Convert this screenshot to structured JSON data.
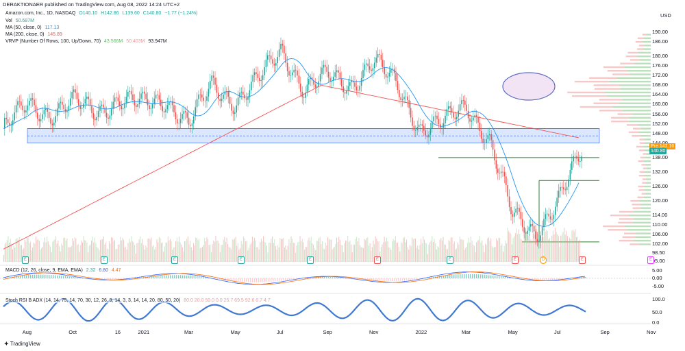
{
  "header": {
    "publisher": "DERAKTIONAER published on TradingView.com, Aug 08, 2022 14:24 UTC+2",
    "symbol": "Amazon.com, Inc., 1D, NASDAQ",
    "ohlc_o": "O140.10",
    "ohlc_h": "H142.86",
    "ohlc_l": "L139.60",
    "ohlc_c": "C140.80",
    "change": "−1.77 (−1.24%)"
  },
  "legend": {
    "vol_label": "Vol",
    "vol_value": "50.687M",
    "ma50_label": "MA (50, close, 0)",
    "ma50_value": "117.13",
    "ma200_label": "MA (200, close, 0)",
    "ma200_value": "145.89",
    "vrvp_label": "VRVP (Number Of Rows, 100, Up/Down, 70)",
    "vrvp_v1": "43.566M",
    "vrvp_v2": "50.403M",
    "vrvp_v3": "93.947M",
    "macd_label": "MACD (12, 26, close, 9, EMA, EMA)",
    "macd_v1": "2.32",
    "macd_v2": "6.80",
    "macd_v3": "4.47",
    "stoch_label": "Stoch RSI B ADX (14, 14, 75, 14, 70, 30, 12, 26, 9, 14, 3, 3, 14, 14, 20, 80, 50, 20)",
    "stoch_vals": "80.0  20.0  50.0  0.0  25.7  69.5  92.6  0.7  4.7"
  },
  "price_axis": {
    "currency": "USD",
    "ticks": [
      "190.00",
      "186.00",
      "180.00",
      "176.00",
      "172.00",
      "168.00",
      "164.00",
      "160.00",
      "156.00",
      "152.00",
      "148.00",
      "144.00",
      "138.00",
      "132.00",
      "126.00",
      "120.00",
      "114.00",
      "110.00",
      "106.00",
      "102.00",
      "98.50",
      "95.00"
    ],
    "pre_label": "Pre",
    "pre_value": "142.16",
    "last_value": "140.80"
  },
  "macd_axis": [
    "5.00",
    "0.00",
    "-5.00"
  ],
  "stoch_axis": [
    "100.0",
    "50.0",
    "0.0"
  ],
  "time_axis": [
    "Aug",
    "Oct",
    "16",
    "2021",
    "Mar",
    "May",
    "Jul",
    "Sep",
    "Nov",
    "2022",
    "Mar",
    "May",
    "Jul",
    "Sep",
    "Nov"
  ],
  "events": [
    "E",
    "E",
    "E",
    "E",
    "E",
    "E",
    "E",
    "E",
    "E",
    "E",
    "D",
    "E",
    "E"
  ],
  "footer": "TradingView",
  "colors": {
    "up": "#26a69a",
    "down": "#ef5350",
    "ma50": "#2196f3",
    "ma200": "#ef5350",
    "zone": "#2962ff",
    "support": "#2e7d32"
  },
  "chart_data": {
    "type": "candlestick",
    "title": "Amazon.com, Inc., 1D, NASDAQ",
    "ylim": [
      95,
      192
    ],
    "x_range": [
      "2020-07",
      "2022-11"
    ],
    "close_path_approx": [
      {
        "x": "2020-07",
        "y": 150
      },
      {
        "x": "2020-08",
        "y": 160
      },
      {
        "x": "2020-09",
        "y": 156
      },
      {
        "x": "2020-10",
        "y": 161
      },
      {
        "x": "2020-11",
        "y": 157
      },
      {
        "x": "2020-12",
        "y": 162
      },
      {
        "x": "2021-01",
        "y": 160
      },
      {
        "x": "2021-02",
        "y": 162
      },
      {
        "x": "2021-03",
        "y": 152
      },
      {
        "x": "2021-04",
        "y": 168
      },
      {
        "x": "2021-05",
        "y": 161
      },
      {
        "x": "2021-06",
        "y": 170
      },
      {
        "x": "2021-07",
        "y": 183
      },
      {
        "x": "2021-08",
        "y": 166
      },
      {
        "x": "2021-09",
        "y": 172
      },
      {
        "x": "2021-10",
        "y": 168
      },
      {
        "x": "2021-11",
        "y": 178
      },
      {
        "x": "2021-12",
        "y": 168
      },
      {
        "x": "2022-01",
        "y": 150
      },
      {
        "x": "2022-02",
        "y": 152
      },
      {
        "x": "2022-03",
        "y": 160
      },
      {
        "x": "2022-04",
        "y": 145
      },
      {
        "x": "2022-05",
        "y": 114
      },
      {
        "x": "2022-06",
        "y": 107
      },
      {
        "x": "2022-07",
        "y": 120
      },
      {
        "x": "2022-08",
        "y": 140.8
      }
    ],
    "ma50_last": 117.13,
    "ma200_last": 145.89,
    "resistance_zone": [
      144,
      150
    ],
    "support_levels": [
      138,
      128.5,
      103
    ]
  }
}
